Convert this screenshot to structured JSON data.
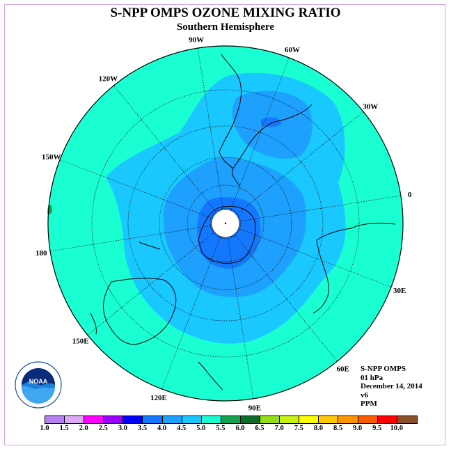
{
  "title": "S-NPP OMPS OZONE MIXING RATIO",
  "subtitle": "Southern Hemisphere",
  "longitude_labels": [
    {
      "text": "90W",
      "angle": -99
    },
    {
      "text": "60W",
      "angle": -69
    },
    {
      "text": "30W",
      "angle": -39
    },
    {
      "text": "0",
      "angle": -9
    },
    {
      "text": "30E",
      "angle": 21
    },
    {
      "text": "60E",
      "angle": 51
    },
    {
      "text": "90E",
      "angle": 81
    },
    {
      "text": "120E",
      "angle": 111
    },
    {
      "text": "150E",
      "angle": 141
    },
    {
      "text": "180",
      "angle": 171
    },
    {
      "text": "150W",
      "angle": 201
    },
    {
      "text": "120W",
      "angle": 231
    }
  ],
  "info": {
    "satellite": "S-NPP OMPS",
    "level": "01 hPa",
    "date": "December 14, 2014",
    "version": "v6",
    "unit": "PPM"
  },
  "logo": {
    "text": "NOAA",
    "ring_text": "NATIONAL OCEANIC AND ATMOSPHERIC ADMINISTRATION · U.S. DEPARTMENT OF COMMERCE"
  },
  "colorbar": {
    "ticks": [
      "1.0",
      "1.5",
      "2.0",
      "2.5",
      "3.0",
      "3.5",
      "4.0",
      "4.5",
      "5.0",
      "5.5",
      "6.0",
      "6.5",
      "7.0",
      "7.5",
      "8.0",
      "8.5",
      "9.0",
      "9.5",
      "10.0"
    ],
    "colors": [
      "#b77ff0",
      "#dcaaf5",
      "#ff00ff",
      "#9a00ff",
      "#0000ff",
      "#1478ff",
      "#1ea0ff",
      "#19c8ff",
      "#19ffd2",
      "#14a050",
      "#0a6e28",
      "#96dc14",
      "#c8f014",
      "#ffff00",
      "#ffc800",
      "#ff9600",
      "#ff5a00",
      "#ff0000",
      "#8c5028"
    ]
  }
}
